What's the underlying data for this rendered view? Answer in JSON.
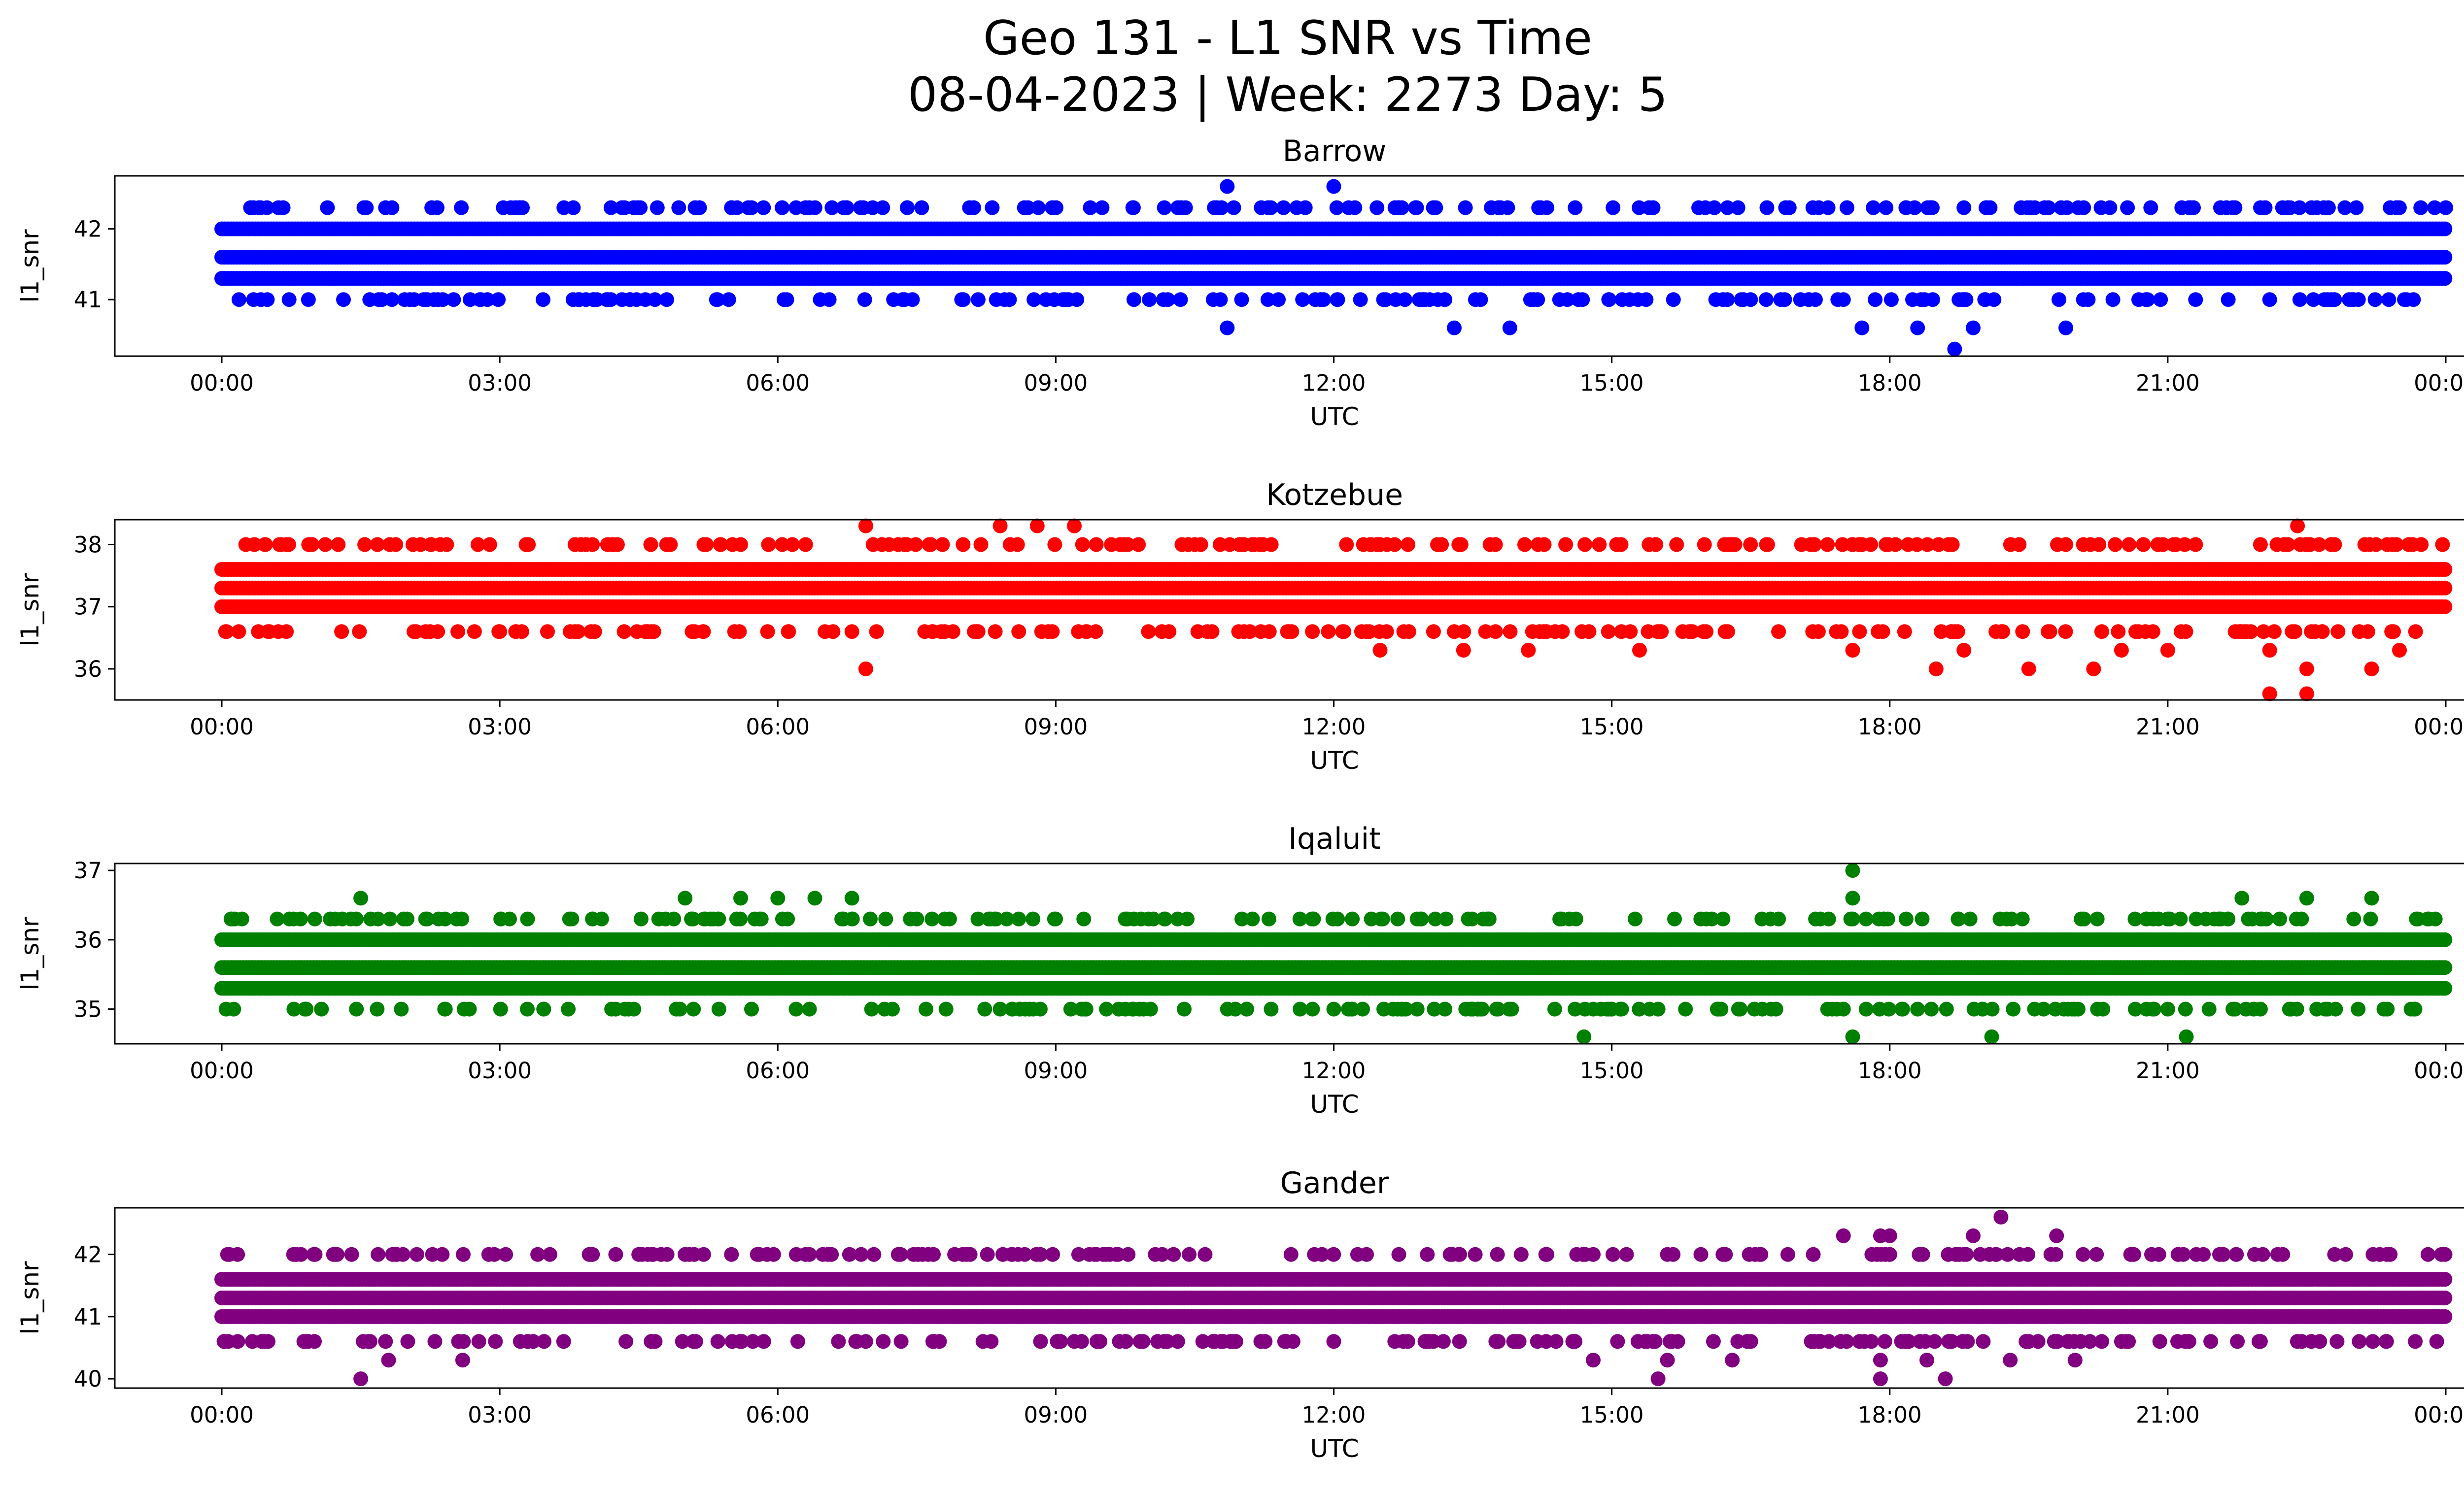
{
  "figure": {
    "title_line1": "Geo 131 - L1 SNR vs Time",
    "title_line2": "08-04-2023 | Week: 2273 Day: 5"
  },
  "chart_data": [
    {
      "type": "scatter",
      "title": "Barrow",
      "xlabel": "UTC",
      "ylabel": "l1_snr",
      "color": "#0000ff",
      "x_range_hours": [
        0,
        24
      ],
      "x_ticks": [
        "00:00",
        "03:00",
        "06:00",
        "09:00",
        "12:00",
        "15:00",
        "18:00",
        "21:00",
        "00:00"
      ],
      "ylim": [
        40.2,
        42.75
      ],
      "y_ticks": [
        41,
        42
      ],
      "dense_levels": [
        41.3,
        41.6,
        42.0
      ],
      "sparse_levels": [
        40.3,
        40.6,
        41.0,
        42.3,
        42.6
      ],
      "points": [
        [
          10.85,
          42.6
        ],
        [
          12.0,
          42.6
        ],
        [
          4.2,
          42.3
        ],
        [
          4.7,
          42.3
        ],
        [
          5.5,
          42.3
        ],
        [
          6.3,
          42.3
        ],
        [
          8.7,
          42.3
        ],
        [
          9.5,
          42.3
        ],
        [
          10.4,
          42.3
        ],
        [
          11.6,
          42.3
        ],
        [
          12.7,
          42.3
        ],
        [
          13.8,
          42.3
        ],
        [
          14.3,
          42.3
        ],
        [
          19.05,
          42.3
        ],
        [
          23.4,
          42.3
        ],
        [
          24.0,
          42.3
        ],
        [
          2.2,
          41.0
        ],
        [
          8.5,
          41.0
        ],
        [
          11.8,
          41.0
        ],
        [
          13.2,
          41.0
        ],
        [
          14.2,
          41.0
        ],
        [
          16.2,
          41.0
        ],
        [
          17.5,
          41.0
        ],
        [
          18.8,
          41.0
        ],
        [
          21.3,
          41.0
        ],
        [
          22.1,
          41.0
        ],
        [
          22.8,
          41.0
        ],
        [
          10.85,
          40.6
        ],
        [
          13.3,
          40.6
        ],
        [
          13.9,
          40.6
        ],
        [
          17.7,
          40.6
        ],
        [
          18.3,
          40.6
        ],
        [
          18.9,
          40.6
        ],
        [
          19.9,
          40.6
        ],
        [
          18.7,
          40.3
        ]
      ]
    },
    {
      "type": "scatter",
      "title": "Kotzebue",
      "xlabel": "UTC",
      "ylabel": "l1_snr",
      "color": "#ff0000",
      "x_range_hours": [
        0,
        24
      ],
      "x_ticks": [
        "00:00",
        "03:00",
        "06:00",
        "09:00",
        "12:00",
        "15:00",
        "18:00",
        "21:00",
        "00:00"
      ],
      "ylim": [
        35.5,
        38.4
      ],
      "y_ticks": [
        36,
        37,
        38
      ],
      "dense_levels": [
        37.0,
        37.3,
        37.6
      ],
      "sparse_levels": [
        35.6,
        36.0,
        36.3,
        36.6,
        38.0,
        38.3
      ],
      "points": [
        [
          6.95,
          38.3
        ],
        [
          8.4,
          38.3
        ],
        [
          8.8,
          38.3
        ],
        [
          9.2,
          38.3
        ],
        [
          22.4,
          38.3
        ],
        [
          0.7,
          38.0
        ],
        [
          4.0,
          38.0
        ],
        [
          4.8,
          38.0
        ],
        [
          5.6,
          38.0
        ],
        [
          6.3,
          38.0
        ],
        [
          7.3,
          38.0
        ],
        [
          8.0,
          38.0
        ],
        [
          9.6,
          38.0
        ],
        [
          10.5,
          38.0
        ],
        [
          11.2,
          38.0
        ],
        [
          12.5,
          38.0
        ],
        [
          16.0,
          38.0
        ],
        [
          19.9,
          38.0
        ],
        [
          21.3,
          38.0
        ],
        [
          22.0,
          38.0
        ],
        [
          22.8,
          38.0
        ],
        [
          23.6,
          38.0
        ],
        [
          0.5,
          36.6
        ],
        [
          2.2,
          36.6
        ],
        [
          3.0,
          36.6
        ],
        [
          6.8,
          36.6
        ],
        [
          8.6,
          36.6
        ],
        [
          10.0,
          36.6
        ],
        [
          11.5,
          36.6
        ],
        [
          12.3,
          36.6
        ],
        [
          13.3,
          36.6
        ],
        [
          15.2,
          36.6
        ],
        [
          16.8,
          36.6
        ],
        [
          12.5,
          36.3
        ],
        [
          13.4,
          36.3
        ],
        [
          14.1,
          36.3
        ],
        [
          15.3,
          36.3
        ],
        [
          17.6,
          36.3
        ],
        [
          18.8,
          36.3
        ],
        [
          20.5,
          36.3
        ],
        [
          21.0,
          36.3
        ],
        [
          22.1,
          36.3
        ],
        [
          23.5,
          36.3
        ],
        [
          6.95,
          36.0
        ],
        [
          18.5,
          36.0
        ],
        [
          19.5,
          36.0
        ],
        [
          20.2,
          36.0
        ],
        [
          22.5,
          36.0
        ],
        [
          23.2,
          36.0
        ],
        [
          22.1,
          35.6
        ],
        [
          22.5,
          35.6
        ]
      ]
    },
    {
      "type": "scatter",
      "title": "Iqaluit",
      "xlabel": "UTC",
      "ylabel": "l1_snr",
      "color": "#008000",
      "x_range_hours": [
        0,
        24
      ],
      "x_ticks": [
        "00:00",
        "03:00",
        "06:00",
        "09:00",
        "12:00",
        "15:00",
        "18:00",
        "21:00",
        "00:00"
      ],
      "ylim": [
        34.5,
        37.1
      ],
      "y_ticks": [
        35,
        36,
        37
      ],
      "dense_levels": [
        35.3,
        35.6,
        36.0
      ],
      "sparse_levels": [
        34.6,
        35.0,
        36.3,
        36.6,
        37.0
      ],
      "points": [
        [
          17.6,
          37.0
        ],
        [
          1.5,
          36.6
        ],
        [
          5.0,
          36.6
        ],
        [
          5.6,
          36.6
        ],
        [
          6.0,
          36.6
        ],
        [
          6.4,
          36.6
        ],
        [
          6.8,
          36.6
        ],
        [
          17.6,
          36.6
        ],
        [
          21.8,
          36.6
        ],
        [
          22.5,
          36.6
        ],
        [
          23.2,
          36.6
        ],
        [
          0.1,
          36.3
        ],
        [
          1.3,
          36.3
        ],
        [
          2.2,
          36.3
        ],
        [
          3.3,
          36.3
        ],
        [
          4.0,
          36.3
        ],
        [
          7.5,
          36.3
        ],
        [
          8.6,
          36.3
        ],
        [
          10.0,
          36.3
        ],
        [
          11.3,
          36.3
        ],
        [
          12.2,
          36.3
        ],
        [
          12.9,
          36.3
        ],
        [
          16.2,
          36.3
        ],
        [
          16.8,
          36.3
        ],
        [
          17.6,
          36.3
        ],
        [
          20.9,
          36.3
        ],
        [
          22.0,
          36.3
        ],
        [
          23.7,
          36.3
        ],
        [
          0.9,
          35.0
        ],
        [
          12.2,
          35.0
        ],
        [
          13.2,
          35.0
        ],
        [
          14.8,
          35.0
        ],
        [
          15.5,
          35.0
        ],
        [
          17.5,
          35.0
        ],
        [
          18.3,
          35.0
        ],
        [
          19.0,
          35.0
        ],
        [
          20.3,
          35.0
        ],
        [
          21.0,
          35.0
        ],
        [
          22.0,
          35.0
        ],
        [
          14.7,
          34.6
        ],
        [
          17.6,
          34.6
        ],
        [
          19.1,
          34.6
        ],
        [
          21.2,
          34.6
        ]
      ]
    },
    {
      "type": "scatter",
      "title": "Gander",
      "xlabel": "UTC",
      "ylabel": "l1_snr",
      "color": "#800080",
      "x_range_hours": [
        0,
        24
      ],
      "x_ticks": [
        "00:00",
        "03:00",
        "06:00",
        "09:00",
        "12:00",
        "15:00",
        "18:00",
        "21:00",
        "00:00"
      ],
      "ylim": [
        39.85,
        42.75
      ],
      "y_ticks": [
        40,
        41,
        42
      ],
      "dense_levels": [
        41.0,
        41.3,
        41.6
      ],
      "sparse_levels": [
        40.0,
        40.3,
        40.6,
        42.0,
        42.3,
        42.6
      ],
      "points": [
        [
          19.2,
          42.6
        ],
        [
          17.5,
          42.3
        ],
        [
          17.9,
          42.3
        ],
        [
          18.0,
          42.3
        ],
        [
          18.9,
          42.3
        ],
        [
          19.8,
          42.3
        ],
        [
          4.0,
          42.0
        ],
        [
          4.5,
          42.0
        ],
        [
          5.2,
          42.0
        ],
        [
          5.8,
          42.0
        ],
        [
          6.2,
          42.0
        ],
        [
          6.9,
          42.0
        ],
        [
          14.3,
          42.0
        ],
        [
          14.8,
          42.0
        ],
        [
          15.6,
          42.0
        ],
        [
          16.2,
          42.0
        ],
        [
          16.9,
          42.0
        ],
        [
          18.0,
          42.0
        ],
        [
          18.8,
          42.0
        ],
        [
          19.4,
          42.0
        ],
        [
          20.6,
          42.0
        ],
        [
          22.8,
          42.0
        ],
        [
          23.4,
          42.0
        ],
        [
          0.5,
          40.6
        ],
        [
          1.0,
          40.6
        ],
        [
          1.6,
          40.6
        ],
        [
          2.3,
          40.6
        ],
        [
          3.3,
          40.6
        ],
        [
          6.95,
          40.6
        ],
        [
          9.2,
          40.6
        ],
        [
          10.1,
          40.6
        ],
        [
          10.8,
          40.6
        ],
        [
          12.0,
          40.6
        ],
        [
          12.8,
          40.6
        ],
        [
          14.0,
          40.6
        ],
        [
          16.5,
          40.6
        ],
        [
          18.2,
          40.6
        ],
        [
          19.6,
          40.6
        ],
        [
          20.5,
          40.6
        ],
        [
          22.0,
          40.6
        ],
        [
          1.8,
          40.3
        ],
        [
          2.6,
          40.3
        ],
        [
          14.8,
          40.3
        ],
        [
          15.6,
          40.3
        ],
        [
          16.3,
          40.3
        ],
        [
          17.9,
          40.3
        ],
        [
          18.4,
          40.3
        ],
        [
          19.3,
          40.3
        ],
        [
          20.0,
          40.3
        ],
        [
          1.5,
          40.0
        ],
        [
          15.5,
          40.0
        ],
        [
          17.9,
          40.0
        ],
        [
          18.6,
          40.0
        ]
      ]
    }
  ]
}
